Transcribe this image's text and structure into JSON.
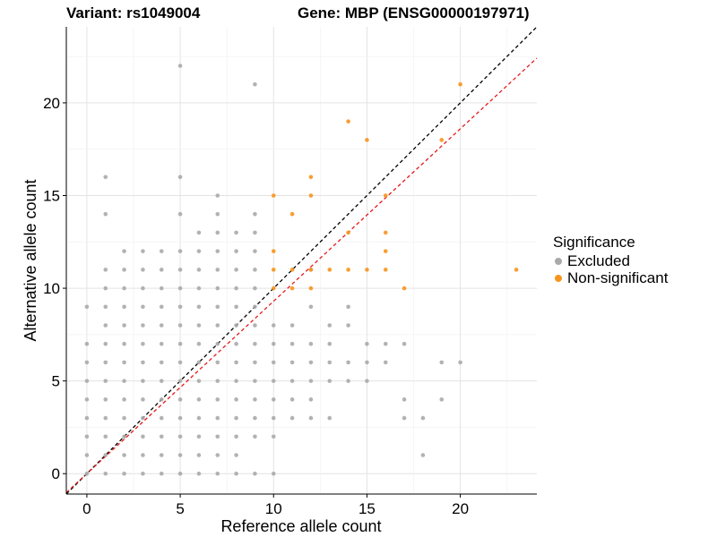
{
  "chart_data": {
    "type": "scatter",
    "title_left": "Variant: rs1049004",
    "title_right": "Gene: MBP (ENSG00000197971)",
    "xlabel": "Reference allele count",
    "ylabel": "Alternative allele count",
    "xlim": [
      -1.1,
      24.1
    ],
    "ylim": [
      -1.1,
      24.1
    ],
    "xticks": [
      0,
      5,
      10,
      15,
      20
    ],
    "yticks": [
      0,
      5,
      10,
      15,
      20
    ],
    "grid": true,
    "legend": {
      "title": "Significance",
      "placement": "right",
      "entries": [
        {
          "name": "Excluded",
          "color": "#AAAAAA"
        },
        {
          "name": "Non-significant",
          "color": "#F7941D"
        }
      ]
    },
    "reference_lines": [
      {
        "name": "identity",
        "slope": 1,
        "intercept": 0,
        "color": "#000000",
        "style": "dashed"
      },
      {
        "name": "fitted",
        "slope": 0.93,
        "intercept": 0,
        "color": "#E41A1C",
        "style": "dashed"
      }
    ],
    "series": [
      {
        "name": "Excluded",
        "color": "#AAAAAA",
        "points": [
          [
            0,
            0
          ],
          [
            1,
            0
          ],
          [
            2,
            0
          ],
          [
            3,
            0
          ],
          [
            4,
            0
          ],
          [
            5,
            0
          ],
          [
            6,
            0
          ],
          [
            7,
            0
          ],
          [
            8,
            0
          ],
          [
            9,
            0
          ],
          [
            10,
            0
          ],
          [
            0,
            1
          ],
          [
            1,
            1
          ],
          [
            2,
            1
          ],
          [
            3,
            1
          ],
          [
            4,
            1
          ],
          [
            5,
            1
          ],
          [
            6,
            1
          ],
          [
            7,
            1
          ],
          [
            8,
            1
          ],
          [
            0,
            2
          ],
          [
            1,
            2
          ],
          [
            2,
            2
          ],
          [
            3,
            2
          ],
          [
            4,
            2
          ],
          [
            5,
            2
          ],
          [
            6,
            2
          ],
          [
            7,
            2
          ],
          [
            8,
            2
          ],
          [
            9,
            2
          ],
          [
            10,
            2
          ],
          [
            0,
            3
          ],
          [
            1,
            3
          ],
          [
            2,
            3
          ],
          [
            3,
            3
          ],
          [
            4,
            3
          ],
          [
            5,
            3
          ],
          [
            6,
            3
          ],
          [
            7,
            3
          ],
          [
            8,
            3
          ],
          [
            9,
            3
          ],
          [
            10,
            3
          ],
          [
            11,
            3
          ],
          [
            12,
            3
          ],
          [
            13,
            3
          ],
          [
            17,
            3
          ],
          [
            18,
            3
          ],
          [
            0,
            4
          ],
          [
            1,
            4
          ],
          [
            2,
            4
          ],
          [
            3,
            4
          ],
          [
            4,
            4
          ],
          [
            5,
            4
          ],
          [
            6,
            4
          ],
          [
            7,
            4
          ],
          [
            8,
            4
          ],
          [
            9,
            4
          ],
          [
            10,
            4
          ],
          [
            11,
            4
          ],
          [
            12,
            4
          ],
          [
            17,
            4
          ],
          [
            19,
            4
          ],
          [
            0,
            5
          ],
          [
            1,
            5
          ],
          [
            2,
            5
          ],
          [
            3,
            5
          ],
          [
            4,
            5
          ],
          [
            5,
            5
          ],
          [
            6,
            5
          ],
          [
            7,
            5
          ],
          [
            8,
            5
          ],
          [
            9,
            5
          ],
          [
            10,
            5
          ],
          [
            11,
            5
          ],
          [
            12,
            5
          ],
          [
            13,
            5
          ],
          [
            14,
            5
          ],
          [
            15,
            5
          ],
          [
            0,
            6
          ],
          [
            1,
            6
          ],
          [
            2,
            6
          ],
          [
            3,
            6
          ],
          [
            4,
            6
          ],
          [
            5,
            6
          ],
          [
            6,
            6
          ],
          [
            7,
            6
          ],
          [
            8,
            6
          ],
          [
            9,
            6
          ],
          [
            10,
            6
          ],
          [
            11,
            6
          ],
          [
            12,
            6
          ],
          [
            13,
            6
          ],
          [
            14,
            6
          ],
          [
            15,
            6
          ],
          [
            16,
            6
          ],
          [
            19,
            6
          ],
          [
            20,
            6
          ],
          [
            0,
            7
          ],
          [
            1,
            7
          ],
          [
            2,
            7
          ],
          [
            3,
            7
          ],
          [
            4,
            7
          ],
          [
            5,
            7
          ],
          [
            6,
            7
          ],
          [
            7,
            7
          ],
          [
            8,
            7
          ],
          [
            9,
            7
          ],
          [
            10,
            7
          ],
          [
            11,
            7
          ],
          [
            12,
            7
          ],
          [
            13,
            7
          ],
          [
            15,
            7
          ],
          [
            16,
            7
          ],
          [
            17,
            7
          ],
          [
            1,
            8
          ],
          [
            2,
            8
          ],
          [
            3,
            8
          ],
          [
            4,
            8
          ],
          [
            5,
            8
          ],
          [
            6,
            8
          ],
          [
            7,
            8
          ],
          [
            8,
            8
          ],
          [
            9,
            8
          ],
          [
            10,
            8
          ],
          [
            11,
            8
          ],
          [
            13,
            8
          ],
          [
            14,
            8
          ],
          [
            0,
            9
          ],
          [
            1,
            9
          ],
          [
            2,
            9
          ],
          [
            3,
            9
          ],
          [
            4,
            9
          ],
          [
            5,
            9
          ],
          [
            6,
            9
          ],
          [
            7,
            9
          ],
          [
            8,
            9
          ],
          [
            9,
            9
          ],
          [
            12,
            9
          ],
          [
            14,
            9
          ],
          [
            1,
            10
          ],
          [
            2,
            10
          ],
          [
            3,
            10
          ],
          [
            4,
            10
          ],
          [
            5,
            10
          ],
          [
            6,
            10
          ],
          [
            7,
            10
          ],
          [
            8,
            10
          ],
          [
            9,
            10
          ],
          [
            1,
            11
          ],
          [
            2,
            11
          ],
          [
            3,
            11
          ],
          [
            4,
            11
          ],
          [
            5,
            11
          ],
          [
            6,
            11
          ],
          [
            7,
            11
          ],
          [
            8,
            11
          ],
          [
            9,
            11
          ],
          [
            12,
            11
          ],
          [
            2,
            12
          ],
          [
            3,
            12
          ],
          [
            4,
            12
          ],
          [
            5,
            12
          ],
          [
            6,
            12
          ],
          [
            7,
            12
          ],
          [
            8,
            12
          ],
          [
            9,
            12
          ],
          [
            6,
            13
          ],
          [
            7,
            13
          ],
          [
            8,
            13
          ],
          [
            9,
            13
          ],
          [
            1,
            14
          ],
          [
            5,
            14
          ],
          [
            7,
            14
          ],
          [
            9,
            14
          ],
          [
            1,
            16
          ],
          [
            5,
            16
          ],
          [
            7,
            15
          ],
          [
            9,
            21
          ],
          [
            5,
            22
          ],
          [
            18,
            1
          ]
        ]
      },
      {
        "name": "Non-significant",
        "color": "#F7941D",
        "points": [
          [
            10,
            10
          ],
          [
            10,
            11
          ],
          [
            10,
            12
          ],
          [
            10,
            15
          ],
          [
            11,
            10
          ],
          [
            11,
            11
          ],
          [
            11,
            14
          ],
          [
            12,
            10
          ],
          [
            12,
            11
          ],
          [
            12,
            15
          ],
          [
            12,
            16
          ],
          [
            13,
            11
          ],
          [
            14,
            11
          ],
          [
            14,
            13
          ],
          [
            14,
            19
          ],
          [
            15,
            11
          ],
          [
            15,
            18
          ],
          [
            16,
            11
          ],
          [
            16,
            12
          ],
          [
            16,
            13
          ],
          [
            16,
            15
          ],
          [
            17,
            10
          ],
          [
            19,
            18
          ],
          [
            20,
            21
          ],
          [
            23,
            11
          ]
        ]
      }
    ]
  }
}
